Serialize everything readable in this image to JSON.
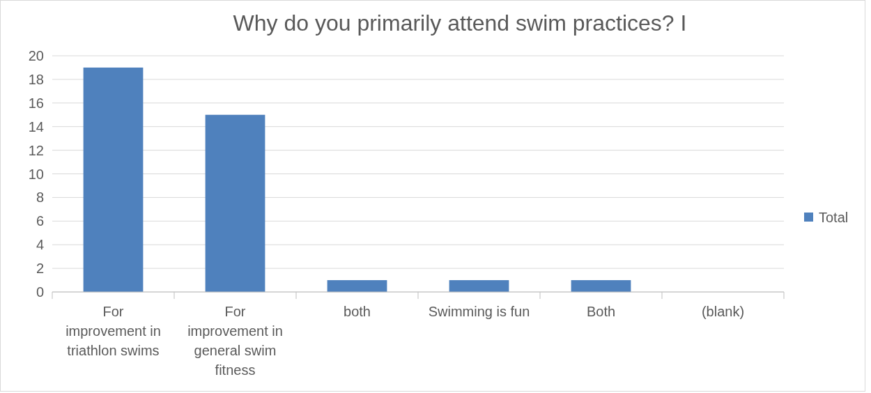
{
  "chart_data": {
    "type": "bar",
    "title": "Why do you primarily attend swim practices? I",
    "categories": [
      "For improvement in triathlon swims",
      "For improvement in general swim fitness",
      "both",
      "Swimming is fun",
      "Both",
      "(blank)"
    ],
    "series": [
      {
        "name": "Total",
        "color": "#4f81bd",
        "values": [
          19,
          15,
          1,
          1,
          1,
          null
        ]
      }
    ],
    "ylim": [
      0,
      20
    ],
    "yticks": [
      0,
      2,
      4,
      6,
      8,
      10,
      12,
      14,
      16,
      18,
      20
    ],
    "grid": "y",
    "legend": "right"
  }
}
